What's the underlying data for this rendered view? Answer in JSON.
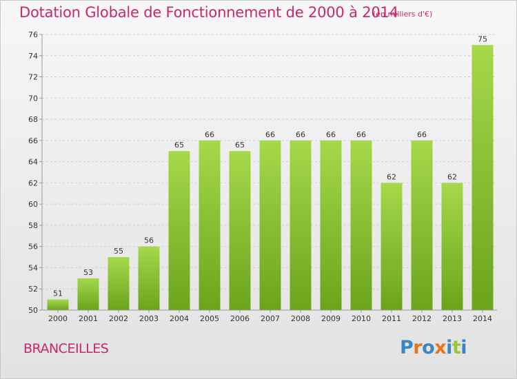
{
  "header": {
    "title": "Dotation Globale de Fonctionnement de 2000 à 2014",
    "unit": "(en milliers d'€)"
  },
  "footer": {
    "commune": "BRANCEILLES",
    "logo_text": "Proxiti"
  },
  "colors": {
    "title": "#c8276d",
    "bar_light": "#a6d84b",
    "bar_dark": "#6ba41a",
    "grid": "#cfcfcf",
    "axis_text": "#333333",
    "logo_letters": [
      "#3b86c6",
      "#e8731d",
      "#3b86c6",
      "#e8731d",
      "#3b86c6",
      "#9cc43a",
      "#3b86c6"
    ]
  },
  "chart_data": {
    "type": "bar",
    "title": "Dotation Globale de Fonctionnement de 2000 à 2014",
    "subtitle": "(en milliers d'€)",
    "xlabel": "",
    "ylabel": "",
    "categories": [
      "2000",
      "2001",
      "2002",
      "2003",
      "2004",
      "2005",
      "2006",
      "2007",
      "2008",
      "2009",
      "2010",
      "2011",
      "2012",
      "2013",
      "2014"
    ],
    "values": [
      51,
      53,
      55,
      56,
      65,
      66,
      65,
      66,
      66,
      66,
      66,
      62,
      66,
      62,
      75
    ],
    "ylim": [
      50,
      76
    ],
    "yticks": [
      50,
      52,
      54,
      56,
      58,
      60,
      62,
      64,
      66,
      68,
      70,
      72,
      74,
      76
    ],
    "grid": true,
    "legend": "none"
  }
}
